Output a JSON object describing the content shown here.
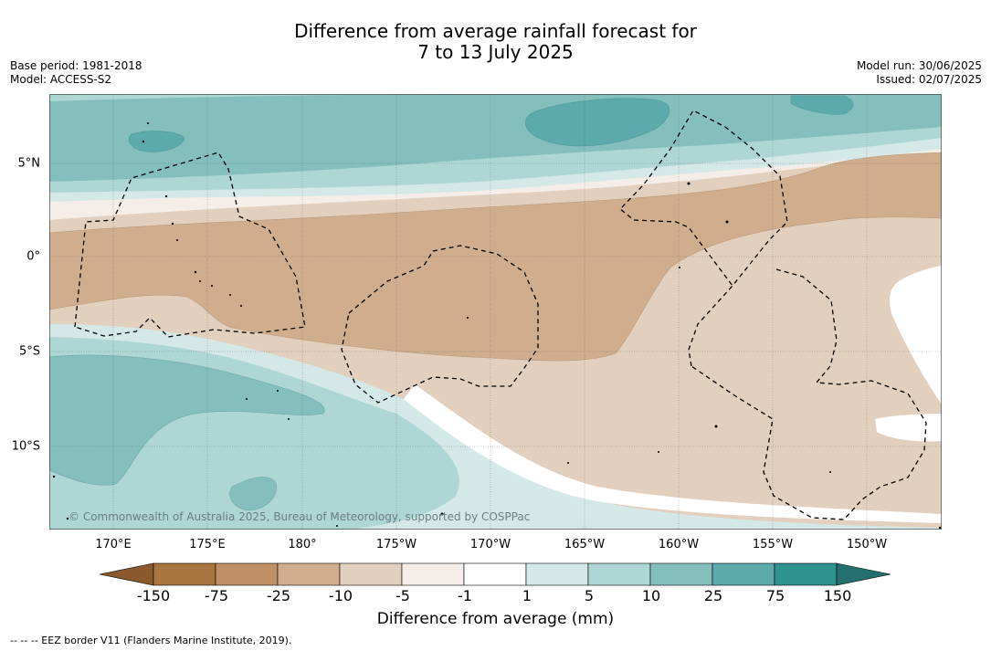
{
  "title": {
    "line1": "Difference from average rainfall forecast for",
    "line2": "7 to 13 July 2025"
  },
  "meta_left": {
    "base_period": "Base period: 1981-2018",
    "model": "Model: ACCESS-S2"
  },
  "meta_right": {
    "model_run": "Model run: 30/06/2025",
    "issued": "Issued: 02/07/2025"
  },
  "map": {
    "longitude_ticks": [
      "170°E",
      "175°E",
      "180°",
      "175°W",
      "170°W",
      "165°W",
      "160°W",
      "155°W",
      "150°W"
    ],
    "latitude_ticks": [
      "5°N",
      "0°",
      "5°S",
      "10°S"
    ],
    "credit": "© Commonwealth of Australia 2025, Bureau of Meteorology, supported by COSPPac",
    "overlay": "EEZ border (dashed)"
  },
  "colorbar": {
    "ticks": [
      "-150",
      "-75",
      "-25",
      "-10",
      "-5",
      "-1",
      "1",
      "5",
      "10",
      "25",
      "75",
      "150"
    ],
    "colors": [
      "#8a5a2e",
      "#a87440",
      "#bf9066",
      "#d0ae8d",
      "#e3cfbd",
      "#f5ede8",
      "#ffffff",
      "#d4e8e7",
      "#aed6d4",
      "#84bebd",
      "#5caaab",
      "#2f928f",
      "#24706e"
    ],
    "label": "Difference from average (mm)"
  },
  "footnote": "--  --  -- EEZ border V11 (Flanders Marine Institute, 2019)."
}
